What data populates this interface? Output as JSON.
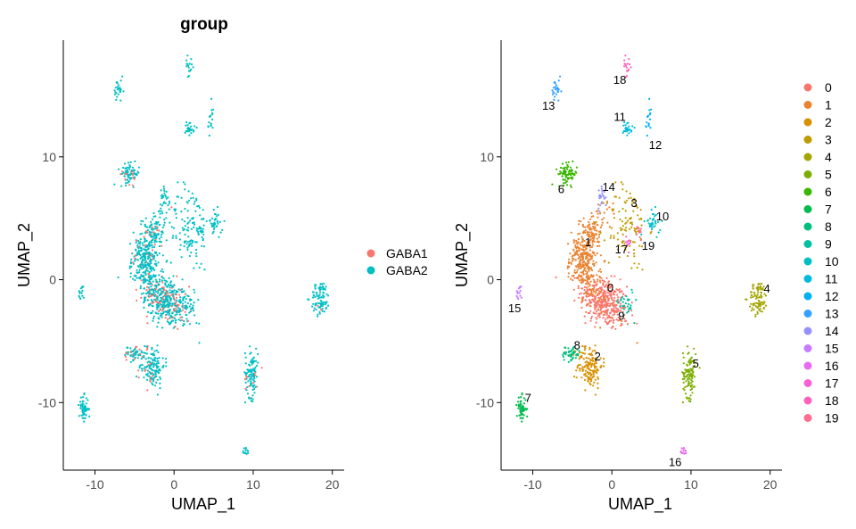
{
  "chart_data": [
    {
      "type": "scatter",
      "title": "group",
      "xlabel": "UMAP_1",
      "ylabel": "UMAP_2",
      "xlim": [
        -14,
        21.5
      ],
      "ylim": [
        -15.5,
        19.5
      ],
      "xticks": [
        -10,
        0,
        10,
        20
      ],
      "yticks": [
        -10,
        0,
        10
      ],
      "grid": false,
      "legend_placement": "right",
      "series": [
        {
          "name": "GABA1",
          "color": "#F8766D"
        },
        {
          "name": "GABA2",
          "color": "#00BFC4"
        }
      ]
    },
    {
      "type": "scatter",
      "title": "",
      "xlabel": "UMAP_1",
      "ylabel": "UMAP_2",
      "xlim": [
        -14,
        21.5
      ],
      "ylim": [
        -15.5,
        19.5
      ],
      "xticks": [
        -10,
        0,
        10,
        20
      ],
      "yticks": [
        -10,
        0,
        10
      ],
      "grid": false,
      "legend_placement": "right",
      "series": [
        {
          "name": "0",
          "color": "#F8766D"
        },
        {
          "name": "1",
          "color": "#EA8331"
        },
        {
          "name": "2",
          "color": "#D89000"
        },
        {
          "name": "3",
          "color": "#C09B00"
        },
        {
          "name": "4",
          "color": "#A3A500"
        },
        {
          "name": "5",
          "color": "#7CAE00"
        },
        {
          "name": "6",
          "color": "#39B600"
        },
        {
          "name": "7",
          "color": "#00BB4E"
        },
        {
          "name": "8",
          "color": "#00BF7D"
        },
        {
          "name": "9",
          "color": "#00C1A3"
        },
        {
          "name": "10",
          "color": "#00BFC4"
        },
        {
          "name": "11",
          "color": "#00BAE0"
        },
        {
          "name": "12",
          "color": "#00B0F6"
        },
        {
          "name": "13",
          "color": "#35A2FF"
        },
        {
          "name": "14",
          "color": "#9590FF"
        },
        {
          "name": "15",
          "color": "#C77CFF"
        },
        {
          "name": "16",
          "color": "#E76BF3"
        },
        {
          "name": "17",
          "color": "#FA62DB"
        },
        {
          "name": "18",
          "color": "#FF62BC"
        },
        {
          "name": "19",
          "color": "#FF6C91"
        }
      ],
      "clusters": [
        {
          "id": "0",
          "cx": -1.0,
          "cy": -1.8,
          "sx": 1.5,
          "sy": 1.0,
          "n": 380,
          "label_x": -0.2,
          "label_y": -0.6
        },
        {
          "id": "1",
          "cx": -3.6,
          "cy": 1.8,
          "sx": 0.9,
          "sy": 1.8,
          "n": 420,
          "label_x": -3.0,
          "label_y": 3.1
        },
        {
          "id": "2",
          "cx": -2.8,
          "cy": -7.0,
          "sx": 0.8,
          "sy": 0.9,
          "n": 150,
          "label_x": -1.8,
          "label_y": -6.2
        },
        {
          "id": "3",
          "cx": 2.0,
          "cy": 4.2,
          "sx": 1.3,
          "sy": 1.8,
          "n": 110,
          "label_x": 2.8,
          "label_y": 6.3
        },
        {
          "id": "4",
          "cx": 18.5,
          "cy": -1.5,
          "sx": 0.6,
          "sy": 0.7,
          "n": 90,
          "label_x": 19.6,
          "label_y": -0.7
        },
        {
          "id": "5",
          "cx": 9.8,
          "cy": -7.6,
          "sx": 0.4,
          "sy": 1.0,
          "n": 110,
          "label_x": 10.6,
          "label_y": -6.8
        },
        {
          "id": "6",
          "cx": -5.6,
          "cy": 8.6,
          "sx": 0.6,
          "sy": 0.4,
          "n": 80,
          "label_x": -6.4,
          "label_y": 7.4
        },
        {
          "id": "7",
          "cx": -11.4,
          "cy": -10.5,
          "sx": 0.3,
          "sy": 0.5,
          "n": 55,
          "label_x": -10.6,
          "label_y": -9.6
        },
        {
          "id": "8",
          "cx": -5.2,
          "cy": -6.0,
          "sx": 0.6,
          "sy": 0.3,
          "n": 50,
          "label_x": -4.4,
          "label_y": -5.3
        },
        {
          "id": "9",
          "cx": 1.8,
          "cy": -1.8,
          "sx": 0.5,
          "sy": 0.6,
          "n": 30,
          "label_x": 1.2,
          "label_y": -2.9
        },
        {
          "id": "10",
          "cx": 5.2,
          "cy": 4.6,
          "sx": 0.5,
          "sy": 0.5,
          "n": 35,
          "label_x": 6.4,
          "label_y": 5.2
        },
        {
          "id": "11",
          "cx": 2.0,
          "cy": 12.4,
          "sx": 0.3,
          "sy": 0.3,
          "n": 25,
          "label_x": 1.0,
          "label_y": 13.3
        },
        {
          "id": "12",
          "cx": 4.6,
          "cy": 12.8,
          "sx": 0.2,
          "sy": 0.8,
          "n": 18,
          "label_x": 5.5,
          "label_y": 11.0
        },
        {
          "id": "13",
          "cx": -7.0,
          "cy": 15.3,
          "sx": 0.3,
          "sy": 0.5,
          "n": 30,
          "label_x": -8.0,
          "label_y": 14.2
        },
        {
          "id": "14",
          "cx": -1.2,
          "cy": 6.9,
          "sx": 0.3,
          "sy": 0.5,
          "n": 22,
          "label_x": -0.4,
          "label_y": 7.6
        },
        {
          "id": "15",
          "cx": -11.8,
          "cy": -1.1,
          "sx": 0.2,
          "sy": 0.3,
          "n": 15,
          "label_x": -12.3,
          "label_y": -2.3
        },
        {
          "id": "16",
          "cx": 9.1,
          "cy": -14.0,
          "sx": 0.2,
          "sy": 0.2,
          "n": 12,
          "label_x": 8.0,
          "label_y": -14.8
        },
        {
          "id": "17",
          "cx": 2.0,
          "cy": 3.2,
          "sx": 0.25,
          "sy": 0.4,
          "n": 12,
          "label_x": 1.2,
          "label_y": 2.5
        },
        {
          "id": "18",
          "cx": 1.9,
          "cy": 17.3,
          "sx": 0.2,
          "sy": 0.4,
          "n": 18,
          "label_x": 1.0,
          "label_y": 16.3
        },
        {
          "id": "19",
          "cx": 3.4,
          "cy": 3.8,
          "sx": 0.2,
          "sy": 0.3,
          "n": 10,
          "label_x": 4.6,
          "label_y": 2.8
        }
      ]
    }
  ]
}
